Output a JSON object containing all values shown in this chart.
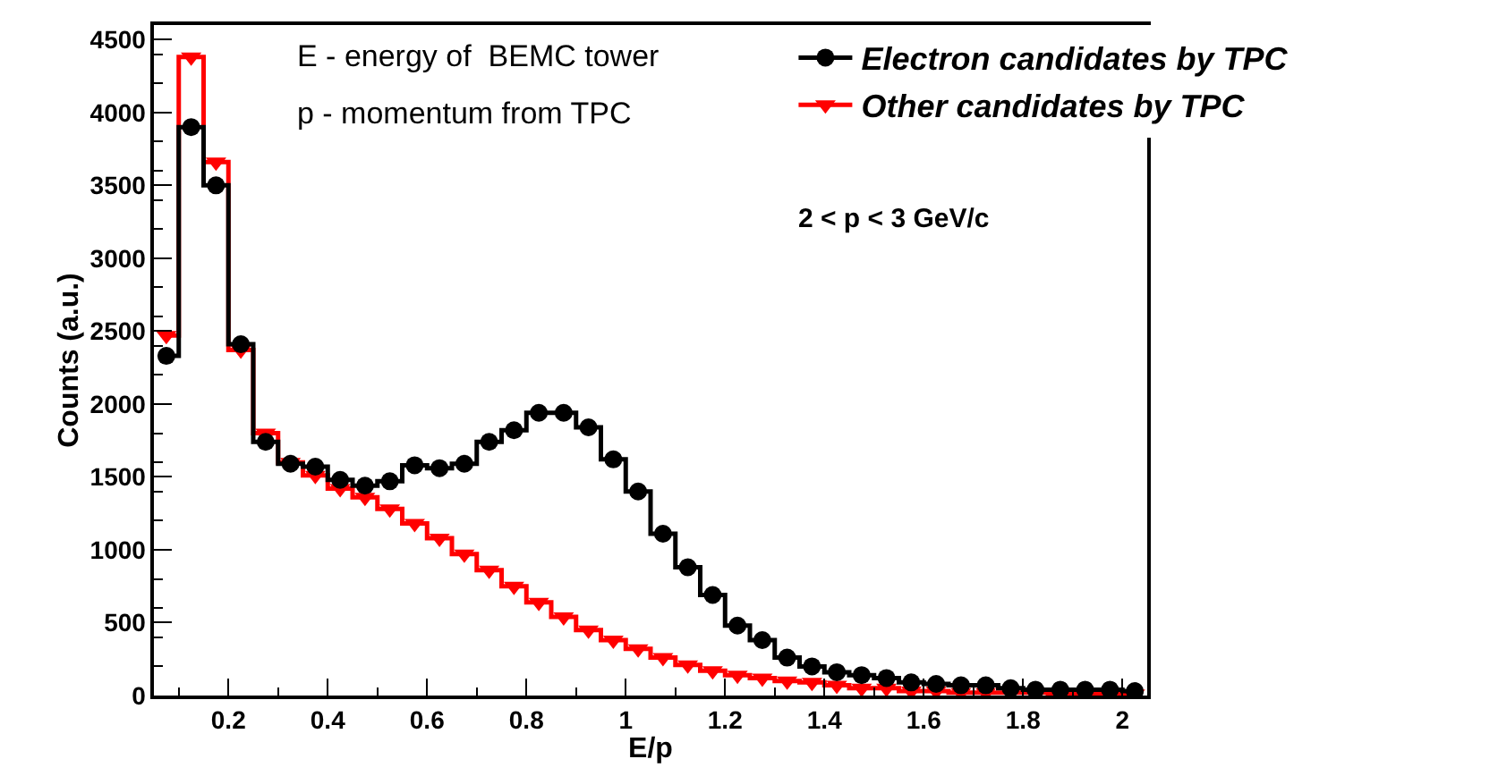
{
  "chart_data": {
    "type": "step",
    "xlabel": "E/p",
    "ylabel": "Counts (a.u.)",
    "x": [
      0.075,
      0.125,
      0.175,
      0.225,
      0.275,
      0.325,
      0.375,
      0.425,
      0.475,
      0.525,
      0.575,
      0.625,
      0.675,
      0.725,
      0.775,
      0.825,
      0.875,
      0.925,
      0.975,
      1.025,
      1.075,
      1.125,
      1.175,
      1.225,
      1.275,
      1.325,
      1.375,
      1.425,
      1.475,
      1.525,
      1.575,
      1.625,
      1.675,
      1.725,
      1.775,
      1.825,
      1.875,
      1.925,
      1.975,
      2.025
    ],
    "series": [
      {
        "name": "Electron candidates by TPC",
        "color": "#000000",
        "marker": "circle",
        "values": [
          2330,
          3900,
          3500,
          2410,
          1740,
          1590,
          1570,
          1480,
          1440,
          1470,
          1580,
          1560,
          1590,
          1740,
          1820,
          1940,
          1940,
          1840,
          1620,
          1400,
          1110,
          880,
          690,
          480,
          380,
          260,
          200,
          160,
          140,
          120,
          90,
          80,
          70,
          70,
          50,
          40,
          40,
          40,
          40,
          30
        ]
      },
      {
        "name": "Other candidates by TPC",
        "color": "#ff0000",
        "marker": "triangle",
        "values": [
          2470,
          4380,
          3660,
          2370,
          1800,
          1600,
          1510,
          1420,
          1360,
          1280,
          1180,
          1080,
          970,
          860,
          750,
          640,
          540,
          450,
          380,
          320,
          260,
          210,
          170,
          140,
          120,
          100,
          90,
          70,
          50,
          50,
          30,
          30,
          20,
          20,
          20,
          20,
          10,
          10,
          10,
          10
        ]
      }
    ],
    "xlim": [
      0.05,
      2.05
    ],
    "ylim": [
      0,
      4600
    ],
    "xticks": [
      0.2,
      0.4,
      0.6,
      0.8,
      1,
      1.2,
      1.4,
      1.6,
      1.8,
      2
    ],
    "yticks": [
      0,
      500,
      1000,
      1500,
      2000,
      2500,
      3000,
      3500,
      4000,
      4500
    ],
    "legend": "top right",
    "annotations": [
      "E - energy of  BEMC tower",
      "p - momentum from TPC",
      "2 < p < 3 GeV/c"
    ]
  }
}
